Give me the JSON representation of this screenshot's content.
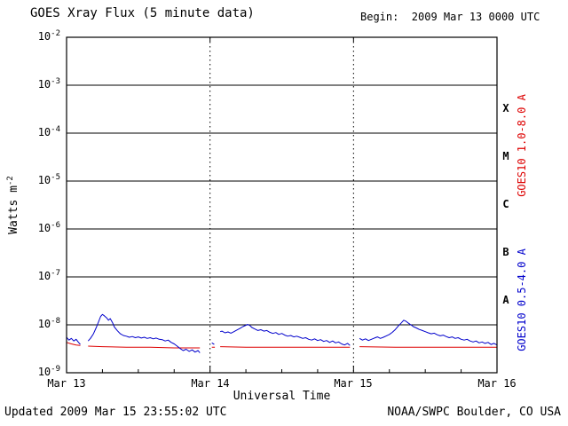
{
  "footer": {
    "updated": "Updated 2009 Mar 15 23:55:02 UTC",
    "source": "NOAA/SWPC Boulder, CO USA"
  },
  "chart_data": {
    "type": "line",
    "title": "GOES Xray Flux (5 minute data)",
    "begin_label": "Begin:  2009 Mar 13 0000 UTC",
    "xlabel": "Universal Time",
    "ylabel": {
      "text": "Watts m",
      "exp": "-2"
    },
    "x_ticks": [
      "Mar 13",
      "Mar 14",
      "Mar 15",
      "Mar 16"
    ],
    "x_range_hours": [
      0,
      72
    ],
    "y_log_exponents": [
      -2,
      -3,
      -4,
      -5,
      -6,
      -7,
      -8,
      -9
    ],
    "ylim": [
      1e-09,
      0.01
    ],
    "grid": {
      "horizontal": "solid",
      "vertical_dotted_at_hours": [
        24,
        48
      ]
    },
    "flare_classes": [
      "X",
      "M",
      "C",
      "B",
      "A"
    ],
    "right_labels": [
      {
        "text": "GOES10 1.0-8.0 A",
        "color": "#dd0000"
      },
      {
        "text": "GOES10 0.5-4.0 A",
        "color": "#0000cc"
      }
    ],
    "series": [
      {
        "name": "GOES10 1.0-8.0 A",
        "color": "#dd0000",
        "points": [
          [
            0,
            4.3e-09
          ],
          [
            0.8,
            4e-09
          ],
          [
            1.6,
            3.8e-09
          ],
          [
            2.3,
            3.7e-09
          ],
          [
            2.5,
            null
          ],
          [
            3.6,
            3.6e-09
          ],
          [
            6,
            3.5e-09
          ],
          [
            10,
            3.4e-09
          ],
          [
            14,
            3.4e-09
          ],
          [
            18,
            3.3e-09
          ],
          [
            22.3,
            3.3e-09
          ],
          [
            22.6,
            null
          ],
          [
            24.3,
            3.4e-09
          ],
          [
            24.8,
            3.4e-09
          ],
          [
            25.0,
            null
          ],
          [
            25.7,
            3.5e-09
          ],
          [
            30,
            3.4e-09
          ],
          [
            36,
            3.4e-09
          ],
          [
            42,
            3.4e-09
          ],
          [
            47.4,
            3.4e-09
          ],
          [
            47.7,
            null
          ],
          [
            49,
            3.5e-09
          ],
          [
            55,
            3.4e-09
          ],
          [
            62,
            3.4e-09
          ],
          [
            68,
            3.4e-09
          ],
          [
            72,
            3.4e-09
          ]
        ]
      },
      {
        "name": "GOES10 0.5-4.0 A",
        "color": "#0000cc",
        "points": [
          [
            0,
            5.5e-09
          ],
          [
            0.4,
            4.8e-09
          ],
          [
            0.8,
            5.2e-09
          ],
          [
            1.2,
            4.6e-09
          ],
          [
            1.6,
            5e-09
          ],
          [
            2.0,
            4.3e-09
          ],
          [
            2.3,
            3.9e-09
          ],
          [
            2.5,
            null
          ],
          [
            3.6,
            4.6e-09
          ],
          [
            4.0,
            5.2e-09
          ],
          [
            4.5,
            6.5e-09
          ],
          [
            5.0,
            9e-09
          ],
          [
            5.4,
            1.2e-08
          ],
          [
            5.7,
            1.5e-08
          ],
          [
            6.0,
            1.65e-08
          ],
          [
            6.3,
            1.55e-08
          ],
          [
            6.7,
            1.4e-08
          ],
          [
            7.0,
            1.25e-08
          ],
          [
            7.3,
            1.35e-08
          ],
          [
            7.7,
            1.1e-08
          ],
          [
            8.0,
            9e-09
          ],
          [
            8.5,
            7.5e-09
          ],
          [
            9.0,
            6.5e-09
          ],
          [
            9.5,
            6e-09
          ],
          [
            10,
            5.8e-09
          ],
          [
            10.5,
            5.5e-09
          ],
          [
            11,
            5.7e-09
          ],
          [
            11.5,
            5.4e-09
          ],
          [
            12,
            5.6e-09
          ],
          [
            12.5,
            5.3e-09
          ],
          [
            13,
            5.5e-09
          ],
          [
            13.5,
            5.2e-09
          ],
          [
            14,
            5.4e-09
          ],
          [
            14.5,
            5.1e-09
          ],
          [
            15,
            5.3e-09
          ],
          [
            15.5,
            5e-09
          ],
          [
            16,
            4.9e-09
          ],
          [
            16.5,
            4.6e-09
          ],
          [
            17,
            4.8e-09
          ],
          [
            17.5,
            4.3e-09
          ],
          [
            18,
            4e-09
          ],
          [
            18.5,
            3.6e-09
          ],
          [
            19,
            3.2e-09
          ],
          [
            19.5,
            2.9e-09
          ],
          [
            20,
            3.1e-09
          ],
          [
            20.5,
            2.8e-09
          ],
          [
            21,
            3e-09
          ],
          [
            21.5,
            2.7e-09
          ],
          [
            22,
            2.9e-09
          ],
          [
            22.3,
            2.6e-09
          ],
          [
            22.6,
            null
          ],
          [
            24.3,
            4.2e-09
          ],
          [
            24.7,
            3.9e-09
          ],
          [
            25.0,
            null
          ],
          [
            25.7,
            7.2e-09
          ],
          [
            26,
            7.4e-09
          ],
          [
            26.5,
            6.8e-09
          ],
          [
            27,
            7.1e-09
          ],
          [
            27.5,
            6.7e-09
          ],
          [
            28,
            7.2e-09
          ],
          [
            28.5,
            7.8e-09
          ],
          [
            29,
            8.4e-09
          ],
          [
            29.5,
            9.2e-09
          ],
          [
            30,
            9.8e-09
          ],
          [
            30.3,
            1.02e-08
          ],
          [
            30.7,
            9.6e-09
          ],
          [
            31,
            8.8e-09
          ],
          [
            31.5,
            8.2e-09
          ],
          [
            32,
            7.6e-09
          ],
          [
            32.5,
            7.9e-09
          ],
          [
            33,
            7.4e-09
          ],
          [
            33.5,
            7.6e-09
          ],
          [
            34,
            7e-09
          ],
          [
            34.5,
            6.6e-09
          ],
          [
            35,
            6.9e-09
          ],
          [
            35.5,
            6.3e-09
          ],
          [
            36,
            6.6e-09
          ],
          [
            36.5,
            6.1e-09
          ],
          [
            37,
            5.8e-09
          ],
          [
            37.5,
            6e-09
          ],
          [
            38,
            5.6e-09
          ],
          [
            38.5,
            5.8e-09
          ],
          [
            39,
            5.5e-09
          ],
          [
            39.5,
            5.2e-09
          ],
          [
            40,
            5.4e-09
          ],
          [
            40.5,
            5e-09
          ],
          [
            41,
            4.8e-09
          ],
          [
            41.5,
            5.1e-09
          ],
          [
            42,
            4.7e-09
          ],
          [
            42.5,
            4.9e-09
          ],
          [
            43,
            4.5e-09
          ],
          [
            43.5,
            4.7e-09
          ],
          [
            44,
            4.3e-09
          ],
          [
            44.5,
            4.6e-09
          ],
          [
            45,
            4.2e-09
          ],
          [
            45.5,
            4.4e-09
          ],
          [
            46,
            4e-09
          ],
          [
            46.5,
            3.8e-09
          ],
          [
            47,
            4.1e-09
          ],
          [
            47.4,
            3.7e-09
          ],
          [
            47.7,
            null
          ],
          [
            49,
            5.2e-09
          ],
          [
            49.5,
            4.8e-09
          ],
          [
            50,
            5.1e-09
          ],
          [
            50.5,
            4.7e-09
          ],
          [
            51,
            5e-09
          ],
          [
            51.5,
            5.3e-09
          ],
          [
            52,
            5.6e-09
          ],
          [
            52.5,
            5.2e-09
          ],
          [
            53,
            5.5e-09
          ],
          [
            53.5,
            5.9e-09
          ],
          [
            54,
            6.3e-09
          ],
          [
            54.5,
            7e-09
          ],
          [
            55,
            8e-09
          ],
          [
            55.5,
            9.5e-09
          ],
          [
            56,
            1.1e-08
          ],
          [
            56.4,
            1.25e-08
          ],
          [
            56.8,
            1.18e-08
          ],
          [
            57.2,
            1.08e-08
          ],
          [
            57.6,
            1e-08
          ],
          [
            58,
            9.2e-09
          ],
          [
            58.5,
            8.6e-09
          ],
          [
            59,
            8e-09
          ],
          [
            59.5,
            7.6e-09
          ],
          [
            60,
            7.2e-09
          ],
          [
            60.5,
            6.8e-09
          ],
          [
            61,
            6.5e-09
          ],
          [
            61.5,
            6.7e-09
          ],
          [
            62,
            6.2e-09
          ],
          [
            62.5,
            5.9e-09
          ],
          [
            63,
            6.1e-09
          ],
          [
            63.5,
            5.7e-09
          ],
          [
            64,
            5.4e-09
          ],
          [
            64.5,
            5.6e-09
          ],
          [
            65,
            5.2e-09
          ],
          [
            65.5,
            5.4e-09
          ],
          [
            66,
            5e-09
          ],
          [
            66.5,
            4.8e-09
          ],
          [
            67,
            5e-09
          ],
          [
            67.5,
            4.6e-09
          ],
          [
            68,
            4.4e-09
          ],
          [
            68.5,
            4.6e-09
          ],
          [
            69,
            4.2e-09
          ],
          [
            69.5,
            4.4e-09
          ],
          [
            70,
            4.1e-09
          ],
          [
            70.5,
            4.3e-09
          ],
          [
            71,
            3.9e-09
          ],
          [
            71.5,
            4.1e-09
          ],
          [
            72,
            3.8e-09
          ]
        ]
      }
    ]
  }
}
